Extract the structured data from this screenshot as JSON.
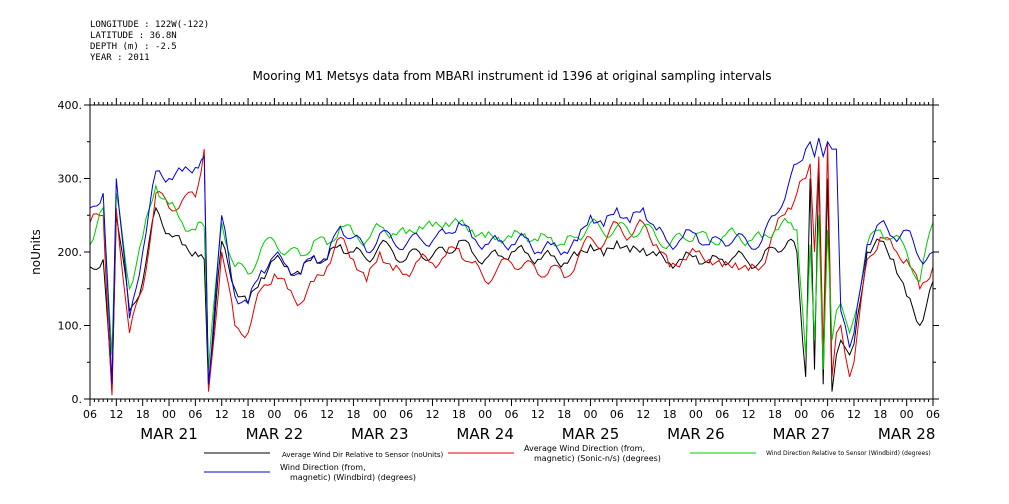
{
  "header": {
    "longitude": "LONGITUDE : 122W(-122)",
    "latitude": "LATITUDE : 36.8N",
    "depth": "DEPTH (m) : -2.5",
    "year": "YEAR : 2011"
  },
  "chart_data": {
    "type": "line",
    "title": "Mooring M1 Metsys data from MBARI instrument id 1396 at original sampling intervals",
    "ylabel": "noUnits",
    "ylim": [
      0,
      400
    ],
    "yticks": [
      0,
      100,
      200,
      300,
      400
    ],
    "ytick_labels": [
      "0.",
      "100.",
      "200.",
      "300.",
      "400."
    ],
    "xlim": [
      "2011-03-20T06:00",
      "2011-03-28T06:00"
    ],
    "hour_ticks": [
      "06",
      "12",
      "18",
      "00",
      "06",
      "12",
      "18",
      "00",
      "06",
      "12",
      "18",
      "00",
      "06",
      "12",
      "18",
      "00",
      "06",
      "12",
      "18",
      "00",
      "06",
      "12",
      "18",
      "00",
      "06",
      "12",
      "18",
      "00",
      "06",
      "12",
      "18",
      "00",
      "06"
    ],
    "day_labels": [
      "MAR 21",
      "MAR 22",
      "MAR 23",
      "MAR 24",
      "MAR 25",
      "MAR 26",
      "MAR 27",
      "MAR 28"
    ],
    "x": [
      "2011-03-20T06:00",
      "2011-03-20T09:00",
      "2011-03-20T11:00",
      "2011-03-20T12:00",
      "2011-03-20T15:00",
      "2011-03-20T18:00",
      "2011-03-20T21:00",
      "2011-03-21T00:00",
      "2011-03-21T03:00",
      "2011-03-21T06:00",
      "2011-03-21T08:00",
      "2011-03-21T09:00",
      "2011-03-21T12:00",
      "2011-03-21T15:00",
      "2011-03-21T18:00",
      "2011-03-21T21:00",
      "2011-03-22T00:00",
      "2011-03-22T03:00",
      "2011-03-22T06:00",
      "2011-03-22T09:00",
      "2011-03-22T12:00",
      "2011-03-22T15:00",
      "2011-03-22T18:00",
      "2011-03-22T21:00",
      "2011-03-23T00:00",
      "2011-03-23T03:00",
      "2011-03-23T06:00",
      "2011-03-23T09:00",
      "2011-03-23T12:00",
      "2011-03-23T15:00",
      "2011-03-23T18:00",
      "2011-03-23T21:00",
      "2011-03-24T00:00",
      "2011-03-24T03:00",
      "2011-03-24T06:00",
      "2011-03-24T09:00",
      "2011-03-24T12:00",
      "2011-03-24T15:00",
      "2011-03-24T18:00",
      "2011-03-24T21:00",
      "2011-03-25T00:00",
      "2011-03-25T03:00",
      "2011-03-25T06:00",
      "2011-03-25T09:00",
      "2011-03-25T12:00",
      "2011-03-25T15:00",
      "2011-03-25T18:00",
      "2011-03-25T21:00",
      "2011-03-26T00:00",
      "2011-03-26T03:00",
      "2011-03-26T06:00",
      "2011-03-26T09:00",
      "2011-03-26T12:00",
      "2011-03-26T15:00",
      "2011-03-26T18:00",
      "2011-03-26T21:00",
      "2011-03-26T23:00",
      "2011-03-27T01:00",
      "2011-03-27T02:00",
      "2011-03-27T03:00",
      "2011-03-27T04:00",
      "2011-03-27T05:00",
      "2011-03-27T06:00",
      "2011-03-27T07:00",
      "2011-03-27T08:00",
      "2011-03-27T09:00",
      "2011-03-27T10:00",
      "2011-03-27T11:00",
      "2011-03-27T12:00",
      "2011-03-27T15:00",
      "2011-03-27T18:00",
      "2011-03-27T21:00",
      "2011-03-28T00:00",
      "2011-03-28T03:00",
      "2011-03-28T06:00"
    ],
    "series": [
      {
        "name": "Average Wind Dir Relative to Sensor (noUnits)",
        "color": "#000000",
        "values": [
          180,
          190,
          10,
          250,
          120,
          160,
          260,
          225,
          210,
          200,
          190,
          15,
          215,
          150,
          130,
          165,
          190,
          180,
          170,
          195,
          190,
          210,
          200,
          190,
          210,
          200,
          190,
          200,
          195,
          200,
          215,
          200,
          190,
          195,
          200,
          200,
          190,
          195,
          185,
          195,
          210,
          195,
          215,
          200,
          205,
          195,
          185,
          190,
          195,
          185,
          190,
          195,
          185,
          190,
          205,
          215,
          200,
          30,
          300,
          40,
          320,
          20,
          300,
          10,
          60,
          80,
          70,
          60,
          75,
          200,
          215,
          190,
          140,
          100,
          160
        ]
      },
      {
        "name": "Average Wind Direction (from, magnetic) (Sonic-n/s) (degrees)",
        "color": "#e00000",
        "values": [
          240,
          250,
          5,
          260,
          90,
          150,
          280,
          260,
          270,
          275,
          340,
          10,
          200,
          100,
          90,
          150,
          170,
          150,
          130,
          160,
          180,
          220,
          190,
          160,
          200,
          175,
          170,
          190,
          185,
          195,
          205,
          185,
          160,
          180,
          185,
          185,
          170,
          180,
          165,
          190,
          220,
          210,
          240,
          220,
          240,
          210,
          180,
          190,
          200,
          190,
          180,
          185,
          175,
          180,
          230,
          260,
          280,
          300,
          320,
          200,
          330,
          60,
          350,
          30,
          90,
          100,
          60,
          30,
          50,
          190,
          220,
          205,
          190,
          150,
          180
        ]
      },
      {
        "name": "Wind Direction Relative to Sensor (Windbird) (degrees)",
        "color": "#00cc00",
        "values": [
          210,
          260,
          60,
          280,
          150,
          220,
          290,
          265,
          240,
          230,
          235,
          40,
          240,
          180,
          170,
          205,
          215,
          200,
          195,
          215,
          210,
          235,
          225,
          215,
          235,
          225,
          225,
          235,
          235,
          240,
          240,
          230,
          220,
          220,
          220,
          225,
          215,
          220,
          210,
          220,
          240,
          225,
          235,
          225,
          235,
          220,
          210,
          220,
          225,
          215,
          220,
          225,
          215,
          220,
          230,
          240,
          230,
          60,
          210,
          80,
          250,
          40,
          230,
          80,
          120,
          130,
          110,
          90,
          110,
          210,
          230,
          220,
          200,
          160,
          240
        ]
      },
      {
        "name": "Wind Direction (from, magnetic) (Windbird) (degrees)",
        "color": "#0000dd",
        "values": [
          260,
          280,
          20,
          300,
          110,
          200,
          310,
          300,
          310,
          315,
          330,
          20,
          250,
          140,
          130,
          175,
          195,
          180,
          170,
          195,
          190,
          235,
          220,
          200,
          225,
          215,
          210,
          220,
          215,
          225,
          240,
          220,
          210,
          215,
          210,
          220,
          200,
          210,
          200,
          215,
          250,
          235,
          260,
          240,
          260,
          230,
          210,
          220,
          225,
          210,
          215,
          220,
          210,
          215,
          250,
          290,
          320,
          340,
          350,
          330,
          355,
          330,
          350,
          340,
          340,
          120,
          100,
          70,
          90,
          210,
          240,
          220,
          230,
          190,
          200
        ]
      }
    ],
    "grid": false,
    "legend": "bottom"
  }
}
